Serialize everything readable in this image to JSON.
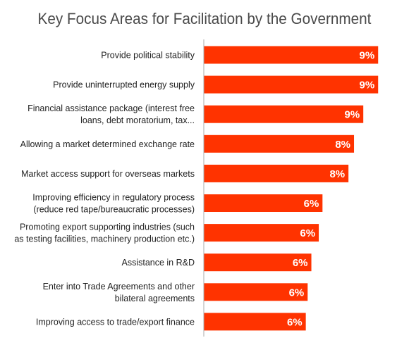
{
  "chart_data": {
    "type": "bar",
    "orientation": "horizontal",
    "title": "Key Focus Areas for Facilitation by the Government",
    "categories": [
      [
        "Provide political stability"
      ],
      [
        "Provide uninterrupted energy supply"
      ],
      [
        "Financial assistance package (interest free",
        "loans, debt moratorium, tax..."
      ],
      [
        "Allowing a market determined exchange rate"
      ],
      [
        "Market access support for overseas markets"
      ],
      [
        "Improving efficiency in regulatory process",
        "(reduce red tape/bureaucratic processes)"
      ],
      [
        "Promoting export supporting industries (such",
        "as testing facilities, machinery production etc.)"
      ],
      [
        "Assistance in R&D"
      ],
      [
        "Enter into Trade Agreements and other",
        "bilateral agreements"
      ],
      [
        "Improving access to trade/export finance"
      ]
    ],
    "values": [
      9.4,
      9.4,
      8.6,
      8.1,
      7.8,
      6.4,
      6.2,
      5.8,
      5.6,
      5.5
    ],
    "value_labels": [
      "9%",
      "9%",
      "9%",
      "8%",
      "8%",
      "6%",
      "6%",
      "6%",
      "6%",
      "6%"
    ],
    "bar_color": "#ff3300",
    "label_color": "#ffffff",
    "axis_color": "#aaaaaa",
    "xlim": [
      0,
      10
    ],
    "grid": false,
    "legend": "none"
  }
}
